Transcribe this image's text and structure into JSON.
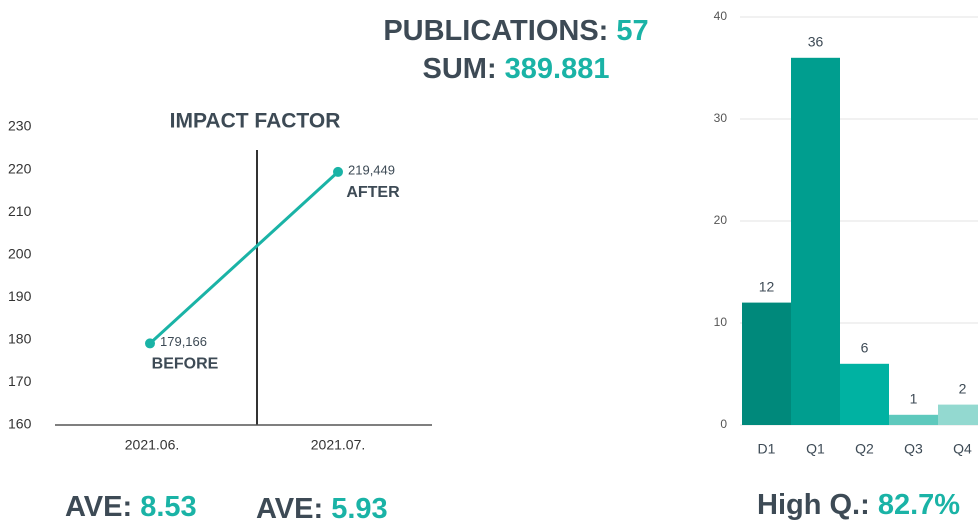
{
  "header": {
    "publications_label": "PUBLICATIONS:",
    "publications": 57,
    "sum_label": "SUM:",
    "sum": 389.881
  },
  "chart_data": [
    {
      "type": "line",
      "title": "IMPACT FACTOR",
      "categories": [
        "2021.06.",
        "2021.07."
      ],
      "values": [
        179.166,
        219.449
      ],
      "value_labels": [
        "179,166",
        "219,449"
      ],
      "point_labels": [
        "BEFORE",
        "AFTER"
      ],
      "color": "#1ab3a6",
      "ylim": [
        160,
        230
      ],
      "yticks": [
        160,
        170,
        180,
        190,
        200,
        210,
        220,
        230
      ],
      "grid": false
    },
    {
      "type": "bar",
      "categories": [
        "D1",
        "Q1",
        "Q2",
        "Q3",
        "Q4"
      ],
      "values": [
        12,
        36,
        6,
        1,
        2
      ],
      "colors": [
        "#00897b",
        "#009e8f",
        "#00b2a2",
        "#5ec9bd",
        "#93d9d0"
      ],
      "ylim": [
        0,
        40
      ],
      "yticks": [
        0,
        10,
        20,
        30,
        40
      ],
      "grid": true
    }
  ],
  "footer": {
    "ave_label_1": "AVE:",
    "ave_1": 8.53,
    "ave_label_2": "AVE:",
    "ave_2": 5.93,
    "high_q_label": "High Q.:",
    "high_q": "82.7%"
  }
}
